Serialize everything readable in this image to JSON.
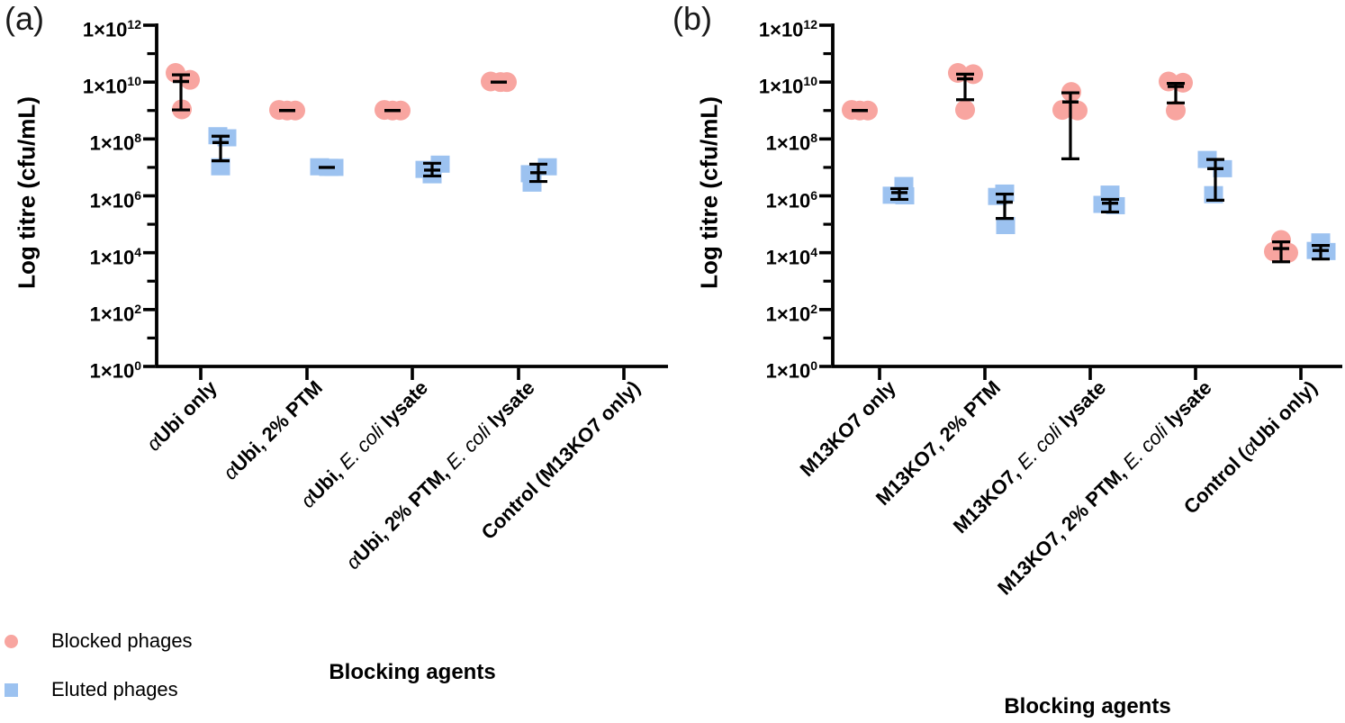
{
  "figure": {
    "background": "#ffffff",
    "axis_color": "#000000",
    "legend": {
      "items": [
        {
          "label": "Blocked phages",
          "marker": "circle",
          "color": "#F8A5A0"
        },
        {
          "label": "Eluted phages",
          "marker": "square",
          "color": "#9CC2F0"
        }
      ]
    }
  },
  "chart_data": [
    {
      "type": "scatter",
      "panel_label": "(a)",
      "ylabel": "Log titre (cfu/mL)",
      "xlabel": "Blocking agents",
      "y_axis": {
        "scale": "log",
        "ylim": [
          1,
          1000000000000.0
        ],
        "tick_prefix": "1×10",
        "labeled_exponents": [
          0,
          2,
          4,
          6,
          8,
          10,
          12
        ],
        "minor_exponents": [
          1,
          3,
          5,
          7,
          9,
          11
        ]
      },
      "legend_position": "bottom-left",
      "grid": false,
      "categories": [
        {
          "text": "αUbi only",
          "segments": [
            {
              "t": "α",
              "i": true
            },
            {
              "t": "Ubi only"
            }
          ]
        },
        {
          "text": "αUbi, 2% PTM",
          "segments": [
            {
              "t": "α",
              "i": true
            },
            {
              "t": "Ubi, 2% PTM"
            }
          ]
        },
        {
          "text": "αUbi, E. coli lysate",
          "segments": [
            {
              "t": "α",
              "i": true
            },
            {
              "t": "Ubi, "
            },
            {
              "t": "E. coli",
              "i": true
            },
            {
              "t": " lysate"
            }
          ]
        },
        {
          "text": "αUbi, 2% PTM, E. coli lysate",
          "segments": [
            {
              "t": "α",
              "i": true
            },
            {
              "t": "Ubi, 2% PTM, "
            },
            {
              "t": "E. coli",
              "i": true
            },
            {
              "t": " lysate"
            }
          ]
        },
        {
          "text": "Control (M13KO7 only)",
          "segments": [
            {
              "t": "Control (M13KO7 only)"
            }
          ]
        }
      ],
      "series": [
        {
          "name": "Blocked phages",
          "marker": "circle",
          "color": "#F8A5A0",
          "groups": [
            {
              "points": [
                {
                  "v": 21000000000.0,
                  "dx": -6
                },
                {
                  "v": 12000000000.0,
                  "dx": 10
                },
                {
                  "v": 1100000000.0,
                  "dx": 1
                }
              ],
              "mean": 10500000000.0,
              "sd": [
                18000000000.0,
                1050000000.0
              ]
            },
            {
              "points": [
                {
                  "v": 1050000000.0,
                  "dx": -9
                },
                {
                  "v": 1000000000.0,
                  "dx": 0
                },
                {
                  "v": 1000000000.0,
                  "dx": 9
                }
              ],
              "mean": 1000000000.0,
              "sd": null
            },
            {
              "points": [
                {
                  "v": 1050000000.0,
                  "dx": -9
                },
                {
                  "v": 1000000000.0,
                  "dx": 0
                },
                {
                  "v": 1000000000.0,
                  "dx": 9
                }
              ],
              "mean": 1000000000.0,
              "sd": null
            },
            {
              "points": [
                {
                  "v": 10500000000.0,
                  "dx": -9
                },
                {
                  "v": 10000000000.0,
                  "dx": 2
                },
                {
                  "v": 10000000000.0,
                  "dx": 9
                }
              ],
              "mean": 10000000000.0,
              "sd": null
            },
            {
              "points": [],
              "mean": null,
              "sd": null
            }
          ]
        },
        {
          "name": "Eluted phages",
          "marker": "square",
          "color": "#9CC2F0",
          "groups": [
            {
              "points": [
                {
                  "v": 130000000.0,
                  "dx": -3
                },
                {
                  "v": 110000000.0,
                  "dx": 7
                },
                {
                  "v": 10500000.0,
                  "dx": 0
                }
              ],
              "mean": 75000000.0,
              "sd": [
                125000000.0,
                17000000.0
              ]
            },
            {
              "points": [
                {
                  "v": 10500000.0,
                  "dx": -8
                },
                {
                  "v": 10000000.0,
                  "dx": 2
                },
                {
                  "v": 10000000.0,
                  "dx": 8
                }
              ],
              "mean": 10000000.0,
              "sd": null
            },
            {
              "points": [
                {
                  "v": 13000000.0,
                  "dx": 9
                },
                {
                  "v": 8500000.0,
                  "dx": -8
                },
                {
                  "v": 5500000.0,
                  "dx": 0
                }
              ],
              "mean": 8000000.0,
              "sd": [
                14000000.0,
                5000000.0
              ]
            },
            {
              "points": [
                {
                  "v": 10500000.0,
                  "dx": 10
                },
                {
                  "v": 6000000.0,
                  "dx": -9
                },
                {
                  "v": 2800000.0,
                  "dx": -7
                }
              ],
              "mean": 6500000.0,
              "sd": [
                13000000.0,
                3200000.0
              ]
            },
            {
              "points": [],
              "mean": null,
              "sd": null
            }
          ]
        }
      ]
    },
    {
      "type": "scatter",
      "panel_label": "(b)",
      "ylabel": "Log titre (cfu/mL)",
      "xlabel": "Blocking agents",
      "y_axis": {
        "scale": "log",
        "ylim": [
          1,
          1000000000000.0
        ],
        "tick_prefix": "1×10",
        "labeled_exponents": [
          0,
          2,
          4,
          6,
          8,
          10,
          12
        ],
        "minor_exponents": [
          1,
          3,
          5,
          7,
          9,
          11
        ]
      },
      "legend_position": "none",
      "grid": false,
      "categories": [
        {
          "text": "M13KO7 only",
          "segments": [
            {
              "t": "M13KO7 only"
            }
          ]
        },
        {
          "text": "M13KO7, 2% PTM",
          "segments": [
            {
              "t": "M13KO7, 2% PTM"
            }
          ]
        },
        {
          "text": "M13KO7, E. coli lysate",
          "segments": [
            {
              "t": "M13KO7, "
            },
            {
              "t": "E. coli",
              "i": true
            },
            {
              "t": " lysate"
            }
          ]
        },
        {
          "text": "M13KO7, 2% PTM, E. coli lysate",
          "segments": [
            {
              "t": "M13KO7, 2% PTM, "
            },
            {
              "t": "E. coli",
              "i": true
            },
            {
              "t": " lysate"
            }
          ]
        },
        {
          "text": "Control (αUbi only)",
          "segments": [
            {
              "t": "Control ("
            },
            {
              "t": "α",
              "i": true
            },
            {
              "t": "Ubi only)"
            }
          ]
        }
      ],
      "series": [
        {
          "name": "Blocked phages",
          "marker": "circle",
          "color": "#F8A5A0",
          "groups": [
            {
              "points": [
                {
                  "v": 1050000000.0,
                  "dx": -9
                },
                {
                  "v": 1000000000.0,
                  "dx": 0
                },
                {
                  "v": 1000000000.0,
                  "dx": 9
                }
              ],
              "mean": 1000000000.0,
              "sd": null
            },
            {
              "points": [
                {
                  "v": 21000000000.0,
                  "dx": -8
                },
                {
                  "v": 19000000000.0,
                  "dx": 9
                },
                {
                  "v": 1050000000.0,
                  "dx": 0
                }
              ],
              "mean": 13000000000.0,
              "sd": [
                19000000000.0,
                2400000000.0
              ]
            },
            {
              "points": [
                {
                  "v": 4500000000.0,
                  "dx": 1
                },
                {
                  "v": 1050000000.0,
                  "dx": -9
                },
                {
                  "v": 1000000000.0,
                  "dx": 8
                }
              ],
              "mean": 2000000000.0,
              "sd": [
                4200000000.0,
                20000000.0
              ]
            },
            {
              "points": [
                {
                  "v": 10500000000.0,
                  "dx": -8
                },
                {
                  "v": 9500000000.0,
                  "dx": 8
                },
                {
                  "v": 1000000000.0,
                  "dx": 0
                }
              ],
              "mean": 7000000000.0,
              "sd": [
                9000000000.0,
                1850000000.0
              ]
            },
            {
              "points": [
                {
                  "v": 28000.0,
                  "dx": 0
                },
                {
                  "v": 11000.0,
                  "dx": -8
                },
                {
                  "v": 10000.0,
                  "dx": 8
                }
              ],
              "mean": 14000.0,
              "sd": [
                24000.0,
                4800.0
              ]
            }
          ]
        },
        {
          "name": "Eluted phages",
          "marker": "square",
          "color": "#9CC2F0",
          "groups": [
            {
              "points": [
                {
                  "v": 2300000.0,
                  "dx": 5
                },
                {
                  "v": 1050000.0,
                  "dx": -8
                },
                {
                  "v": 1000000.0,
                  "dx": 6
                }
              ],
              "mean": 1300000.0,
              "sd": [
                1800000.0,
                750000.0
              ]
            },
            {
              "points": [
                {
                  "v": 1250000.0,
                  "dx": 0
                },
                {
                  "v": 950000.0,
                  "dx": -8
                },
                {
                  "v": 90000.0,
                  "dx": 1
                }
              ],
              "mean": 600000.0,
              "sd": [
                1150000.0,
                160000.0
              ]
            },
            {
              "points": [
                {
                  "v": 1150000.0,
                  "dx": 0
                },
                {
                  "v": 500000.0,
                  "dx": -8
                },
                {
                  "v": 450000.0,
                  "dx": 6
                }
              ],
              "mean": 550000.0,
              "sd": [
                750000.0,
                270000.0
              ]
            },
            {
              "points": [
                {
                  "v": 19000000.0,
                  "dx": -9
                },
                {
                  "v": 9000000.0,
                  "dx": 8
                },
                {
                  "v": 1100000.0,
                  "dx": -2
                }
              ],
              "mean": 9000000.0,
              "sd": [
                19000000.0,
                700000.0
              ]
            },
            {
              "points": [
                {
                  "v": 24000.0,
                  "dx": 0
                },
                {
                  "v": 12000.0,
                  "dx": -5
                },
                {
                  "v": 11000.0,
                  "dx": 6
                }
              ],
              "mean": 12000.0,
              "sd": [
                18000.0,
                6000.0
              ]
            }
          ]
        }
      ]
    }
  ]
}
